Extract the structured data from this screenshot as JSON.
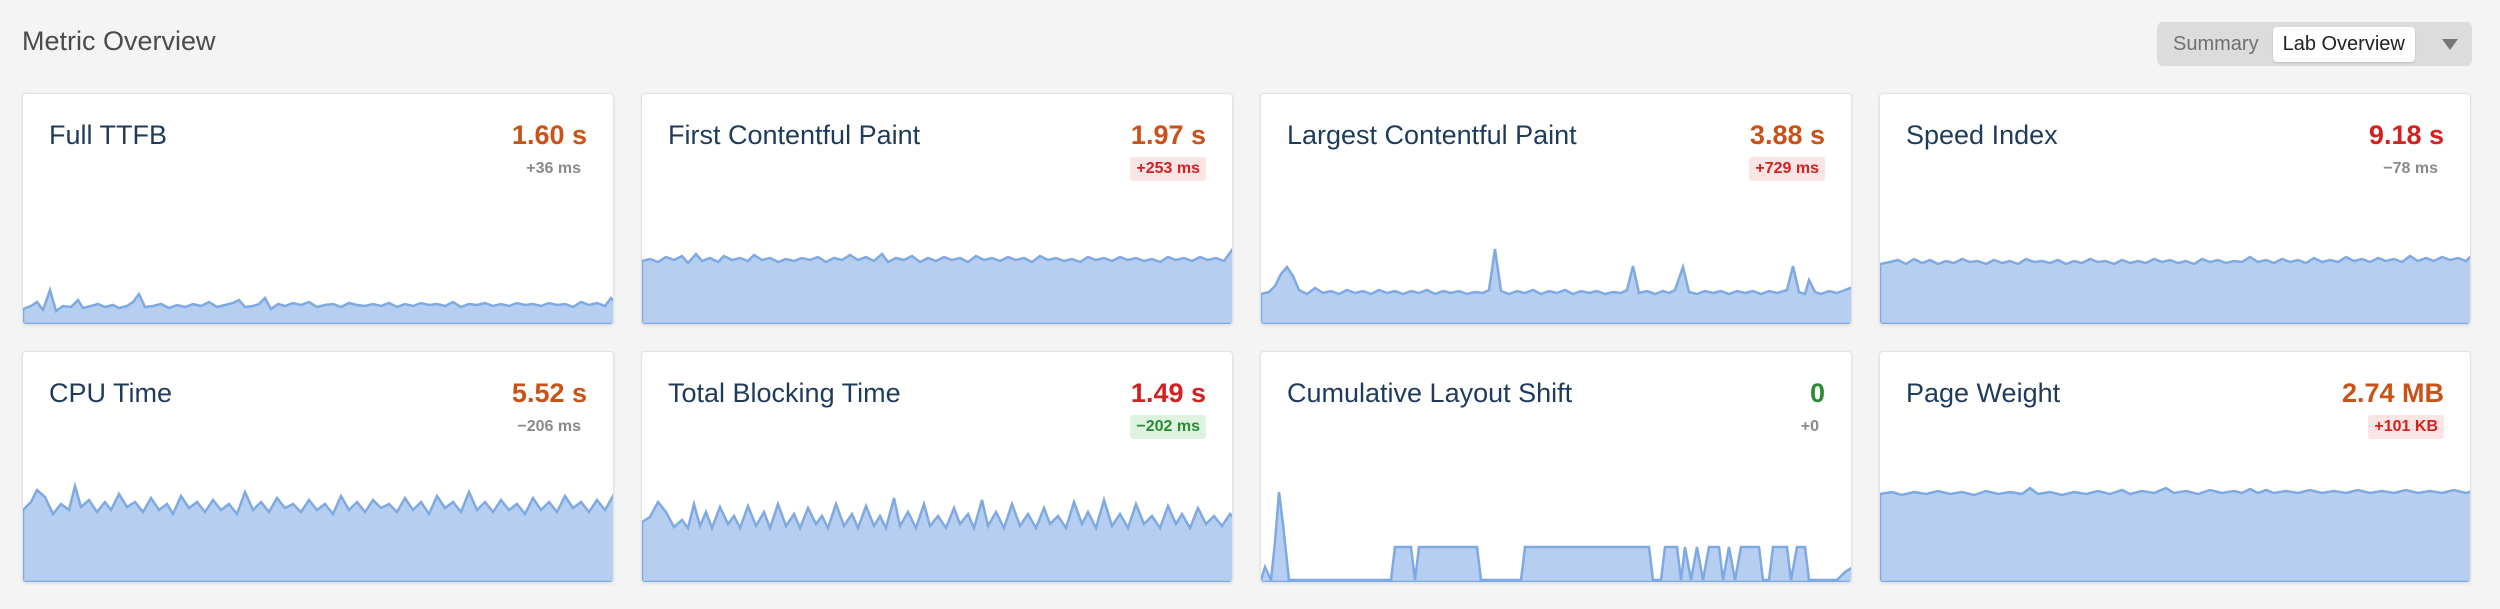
{
  "header": {
    "title": "Metric Overview"
  },
  "view_toggle": {
    "options": [
      "Summary",
      "Lab Overview"
    ],
    "selected": "Lab Overview"
  },
  "colors": {
    "chart_fill": "#b6cff0",
    "chart_line": "#7fa9e2",
    "value_orange": "#c95218",
    "value_red": "#d32020",
    "value_green": "#2a8a34"
  },
  "metrics": [
    {
      "label": "Full TTFB",
      "value": "1.60 s",
      "delta": "+36 ms"
    },
    {
      "label": "First Contentful Paint",
      "value": "1.97 s",
      "delta": "+253 ms"
    },
    {
      "label": "Largest Contentful Paint",
      "value": "3.88 s",
      "delta": "+729 ms"
    },
    {
      "label": "Speed Index",
      "value": "9.18 s",
      "delta": "−78 ms"
    },
    {
      "label": "CPU Time",
      "value": "5.52 s",
      "delta": "−206 ms"
    },
    {
      "label": "Total Blocking Time",
      "value": "1.49 s",
      "delta": "−202 ms"
    },
    {
      "label": "Cumulative Layout Shift",
      "value": "0",
      "delta": "+0"
    },
    {
      "label": "Page Weight",
      "value": "2.74 MB",
      "delta": "+101 KB"
    }
  ]
}
